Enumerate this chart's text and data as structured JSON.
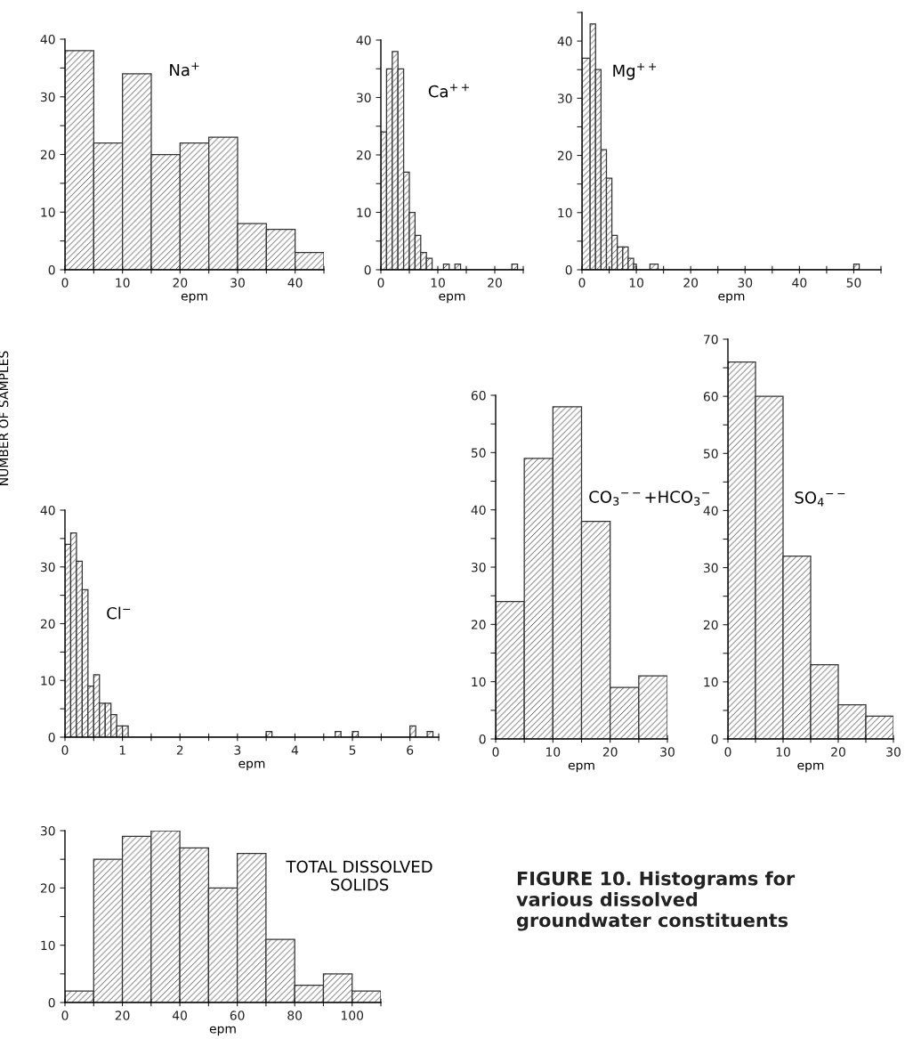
{
  "chart_data": [
    {
      "type": "histogram",
      "title": "Na$^{+}$",
      "xlabel": "epm",
      "color": "#333333",
      "bins": [
        0,
        5,
        10,
        15,
        20,
        25,
        30,
        35,
        40,
        45
      ],
      "values": [
        38,
        22,
        34,
        20,
        22,
        23,
        8,
        7,
        3
      ],
      "xlim": [
        0,
        45
      ],
      "ylim": [
        0,
        40
      ],
      "xticks": [
        0,
        {
          "value": 5,
          "label": null
        },
        10,
        {
          "value": 15,
          "label": null
        },
        20,
        {
          "value": 25,
          "label": null
        },
        30,
        {
          "value": 35,
          "label": null
        },
        40,
        {
          "value": 45,
          "label": null
        }
      ],
      "yticks": [
        0,
        {
          "value": 5,
          "label": null
        },
        10,
        {
          "value": 15,
          "label": null
        },
        20,
        {
          "value": 25,
          "label": null
        },
        30,
        {
          "value": 35,
          "label": null
        },
        40
      ]
    },
    {
      "type": "histogram",
      "title": "Ca$^{++}$",
      "xlabel": "epm",
      "color": "#333333",
      "bins": [
        0,
        1,
        2,
        3,
        4,
        5,
        6,
        7,
        8,
        9,
        11,
        12,
        13,
        14,
        23,
        24
      ],
      "values": [
        24,
        35,
        38,
        35,
        17,
        10,
        6,
        3,
        2,
        0,
        1,
        0,
        1,
        0,
        1
      ],
      "xlim": [
        0,
        25
      ],
      "ylim": [
        0,
        40
      ],
      "xticks": [
        0,
        {
          "value": 5,
          "label": null
        },
        10,
        {
          "value": 15,
          "label": null
        },
        20,
        {
          "value": 25,
          "label": null
        }
      ],
      "yticks": [
        0,
        {
          "value": 5,
          "label": null
        },
        10,
        {
          "value": 15,
          "label": null
        },
        20,
        {
          "value": 25,
          "label": null
        },
        30,
        {
          "value": 35,
          "label": null
        },
        40
      ]
    },
    {
      "type": "histogram",
      "title": "Mg$^{++}$",
      "xlabel": "epm",
      "color": "#333333",
      "bins": [
        0,
        1.5,
        2.5,
        3.5,
        4.5,
        5.5,
        6.5,
        7.5,
        8.5,
        9.5,
        10,
        12.5,
        14,
        50,
        51
      ],
      "values": [
        37,
        43,
        35,
        21,
        16,
        6,
        4,
        4,
        2,
        1,
        0,
        1,
        0,
        1
      ],
      "xlim": [
        0,
        55
      ],
      "ylim": [
        0,
        45
      ],
      "xticks": [
        0,
        {
          "value": 5,
          "label": null
        },
        10,
        {
          "value": 15,
          "label": null
        },
        20,
        {
          "value": 25,
          "label": null
        },
        30,
        {
          "value": 35,
          "label": null
        },
        40,
        {
          "value": 45,
          "label": null
        },
        50,
        {
          "value": 55,
          "label": null
        }
      ],
      "yticks": [
        0,
        {
          "value": 5,
          "label": null
        },
        10,
        {
          "value": 15,
          "label": null
        },
        20,
        {
          "value": 25,
          "label": null
        },
        30,
        {
          "value": 35,
          "label": null
        },
        40,
        {
          "value": 45,
          "label": null
        }
      ]
    },
    {
      "type": "histogram",
      "title": "Cl$^{−}$",
      "xlabel": "epm",
      "ylabel": "NUMBER OF SAMPLES",
      "color": "#333333",
      "bins": [
        0,
        0.1,
        0.2,
        0.3,
        0.4,
        0.5,
        0.6,
        0.7,
        0.8,
        0.9,
        1.0,
        1.1,
        3.5,
        3.6,
        4.7,
        4.8,
        5.0,
        5.1,
        6.0,
        6.1,
        6.3,
        6.4
      ],
      "values": [
        34,
        36,
        31,
        26,
        9,
        11,
        6,
        6,
        4,
        2,
        2,
        0,
        1,
        0,
        1,
        0,
        1,
        0,
        2,
        0,
        1
      ],
      "xlim": [
        0,
        6.5
      ],
      "ylim": [
        0,
        40
      ],
      "xticks": [
        0,
        {
          "value": 0.5,
          "label": null
        },
        1,
        {
          "value": 1.5,
          "label": null
        },
        2,
        {
          "value": 2.5,
          "label": null
        },
        3,
        {
          "value": 3.5,
          "label": null
        },
        4,
        {
          "value": 4.5,
          "label": null
        },
        5,
        {
          "value": 5.5,
          "label": null
        },
        6,
        {
          "value": 6.5,
          "label": null
        }
      ],
      "yticks": [
        0,
        {
          "value": 5,
          "label": null
        },
        10,
        {
          "value": 15,
          "label": null
        },
        20,
        {
          "value": 25,
          "label": null
        },
        30,
        {
          "value": 35,
          "label": null
        },
        40
      ]
    },
    {
      "type": "histogram",
      "title": "CO$_{3}$$^{−−}$+HCO$_{3}$$^{−}$",
      "xlabel": "epm",
      "color": "#333333",
      "bins": [
        0,
        5,
        10,
        15,
        20,
        25,
        30
      ],
      "values": [
        24,
        49,
        58,
        38,
        9,
        11
      ],
      "xlim": [
        0,
        30
      ],
      "ylim": [
        0,
        60
      ],
      "xticks": [
        0,
        {
          "value": 5,
          "label": null
        },
        10,
        {
          "value": 15,
          "label": null
        },
        20,
        {
          "value": 25,
          "label": null
        },
        30
      ],
      "yticks": [
        0,
        {
          "value": 5,
          "label": null
        },
        10,
        {
          "value": 15,
          "label": null
        },
        20,
        {
          "value": 25,
          "label": null
        },
        30,
        {
          "value": 35,
          "label": null
        },
        40,
        {
          "value": 45,
          "label": null
        },
        50,
        {
          "value": 55,
          "label": null
        },
        60
      ]
    },
    {
      "type": "histogram",
      "title": "SO$_{4}$$^{−−}$",
      "xlabel": "epm",
      "color": "#333333",
      "bins": [
        0,
        5,
        10,
        15,
        20,
        25,
        30
      ],
      "values": [
        66,
        60,
        32,
        13,
        6,
        4
      ],
      "xlim": [
        0,
        30
      ],
      "ylim": [
        0,
        70
      ],
      "xticks": [
        0,
        {
          "value": 5,
          "label": null
        },
        10,
        {
          "value": 15,
          "label": null
        },
        20,
        {
          "value": 25,
          "label": null
        },
        30
      ],
      "yticks": [
        0,
        {
          "value": 5,
          "label": null
        },
        10,
        {
          "value": 15,
          "label": null
        },
        20,
        {
          "value": 25,
          "label": null
        },
        30,
        {
          "value": 35,
          "label": null
        },
        40,
        {
          "value": 45,
          "label": null
        },
        50,
        {
          "value": 55,
          "label": null
        },
        60,
        {
          "value": 65,
          "label": null
        },
        70
      ]
    },
    {
      "type": "histogram",
      "title": "TOTAL DISSOLVED\nSOLIDS",
      "xlabel": "epm",
      "color": "#333333",
      "bins": [
        0,
        10,
        20,
        30,
        40,
        50,
        60,
        70,
        80,
        90,
        100,
        110
      ],
      "values": [
        2,
        25,
        29,
        30,
        27,
        20,
        26,
        11,
        3,
        5,
        2
      ],
      "xlim": [
        0,
        110
      ],
      "ylim": [
        0,
        30
      ],
      "xticks": [
        0,
        {
          "value": 10,
          "label": null
        },
        20,
        {
          "value": 30,
          "label": null
        },
        40,
        {
          "value": 50,
          "label": null
        },
        60,
        {
          "value": 70,
          "label": null
        },
        80,
        {
          "value": 90,
          "label": null
        },
        100,
        {
          "value": 110,
          "label": null
        }
      ],
      "yticks": [
        0,
        {
          "value": 5,
          "label": null
        },
        10,
        {
          "value": 15,
          "label": null
        },
        20,
        {
          "value": 25,
          "label": null
        },
        30
      ],
      "annotations": [
        "FIGURE 10. Histograms for\nvarious dissolved\ngroundwater constituents"
      ]
    }
  ]
}
